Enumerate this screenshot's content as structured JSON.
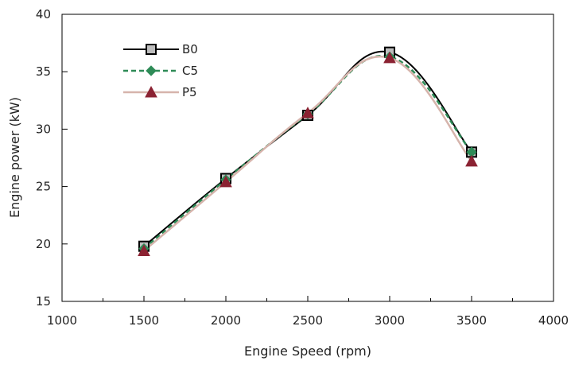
{
  "chart_data": {
    "type": "line",
    "title": "",
    "xlabel": "Engine Speed (rpm)",
    "ylabel": "Engine power (kW)",
    "xlim": [
      1000,
      4000
    ],
    "ylim": [
      15,
      40
    ],
    "x_ticks": [
      "1000",
      "1500",
      "2000",
      "2500",
      "3000",
      "3500",
      "4000"
    ],
    "y_ticks": [
      "15",
      "20",
      "25",
      "30",
      "35",
      "40"
    ],
    "x_tick_values": [
      1000,
      1500,
      2000,
      2500,
      3000,
      3500,
      4000
    ],
    "y_tick_values": [
      15,
      20,
      25,
      30,
      35,
      40
    ],
    "x_minor_step": 250,
    "grid": false,
    "legend_position": "top-left",
    "x": [
      1500,
      2000,
      2500,
      3000,
      3500
    ],
    "series": [
      {
        "name": "B0",
        "values": [
          19.8,
          25.7,
          31.2,
          36.7,
          28.0
        ],
        "color": "#000000",
        "line": "solid",
        "marker": "square",
        "marker_fill": "#bdbdbd"
      },
      {
        "name": "C5",
        "values": [
          19.6,
          25.6,
          31.3,
          36.3,
          28.0
        ],
        "color": "#2e8b57",
        "line": "dashed",
        "marker": "diamond",
        "marker_fill": "#2e8b57"
      },
      {
        "name": "P5",
        "values": [
          19.4,
          25.4,
          31.4,
          36.2,
          27.2
        ],
        "color": "#d6b4ac",
        "line": "solid",
        "marker": "triangle",
        "marker_fill": "#8b2232"
      }
    ]
  }
}
